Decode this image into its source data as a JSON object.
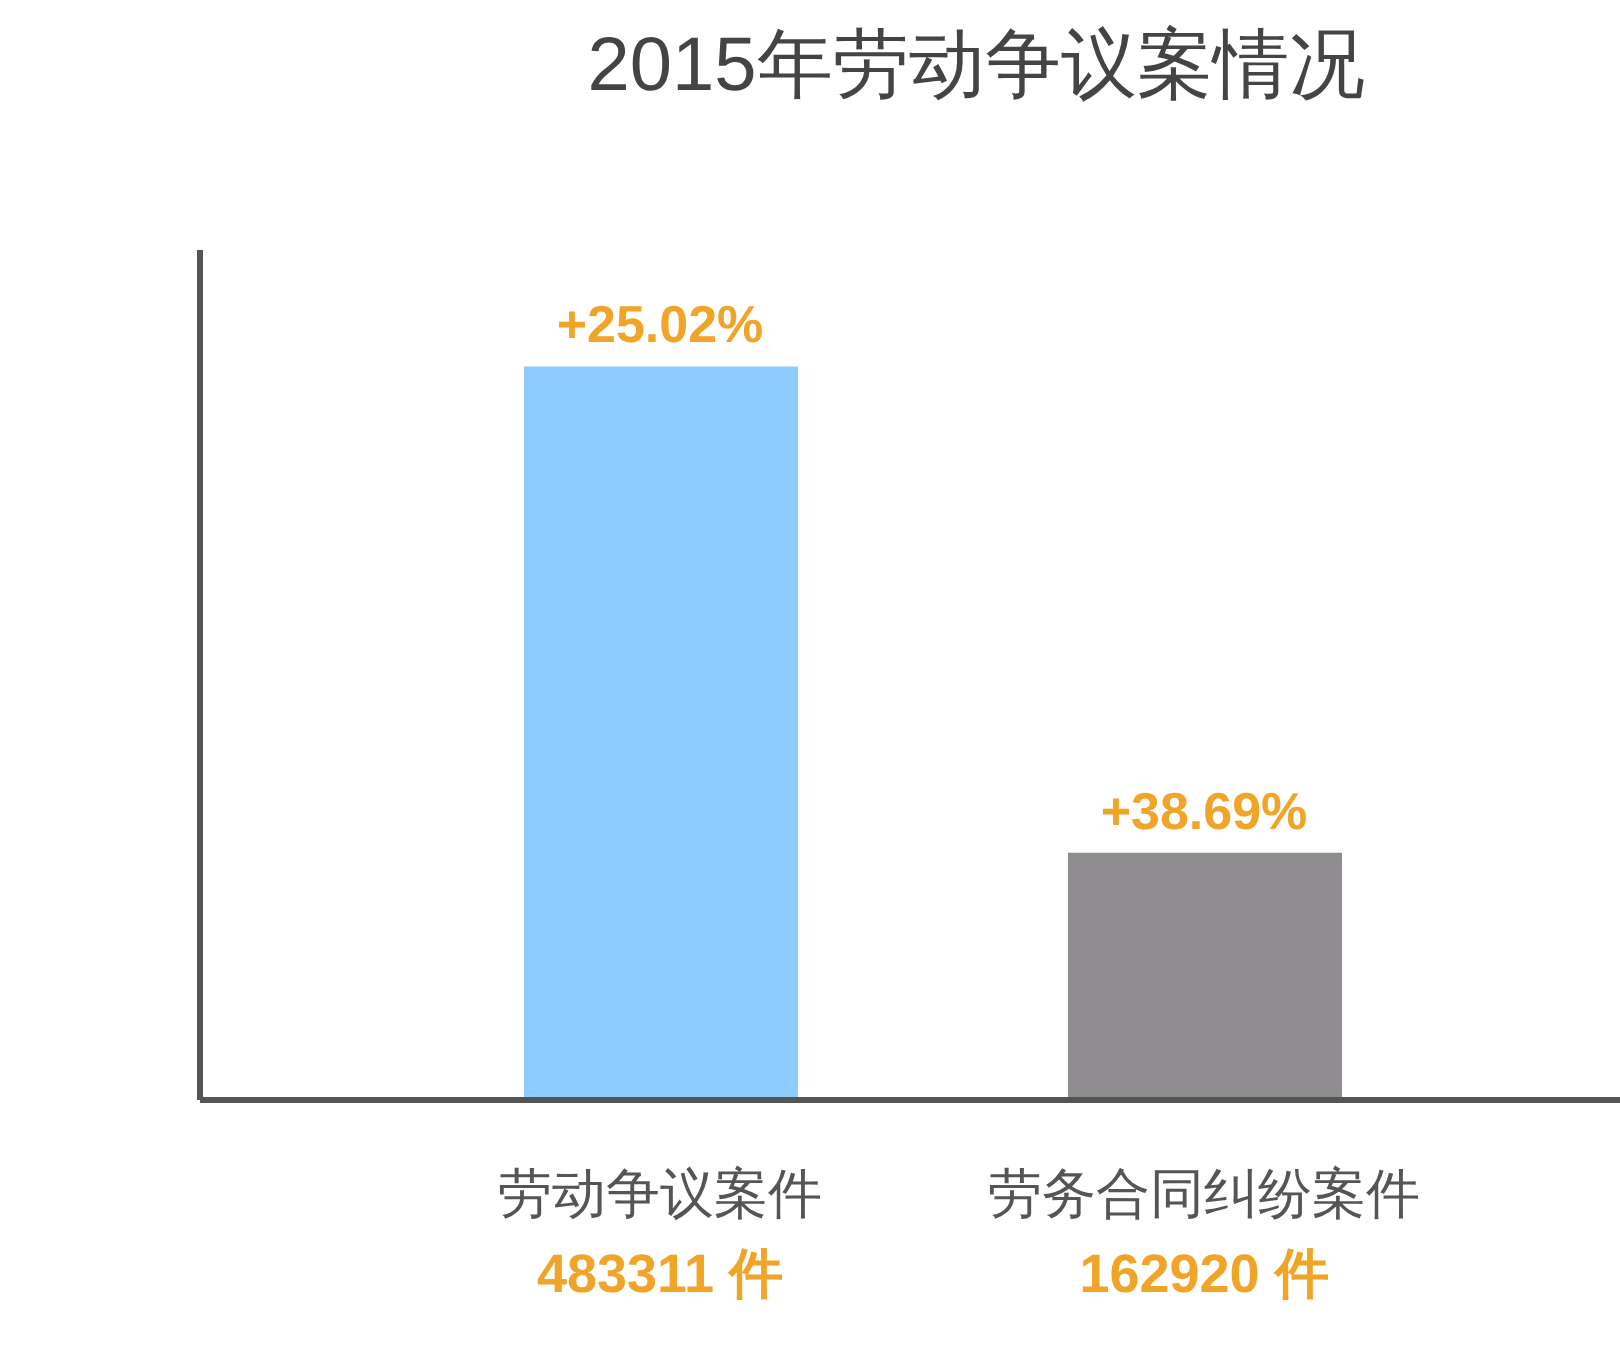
{
  "chart_data": {
    "type": "bar",
    "title": "2015年劳动争议案情况",
    "categories": [
      "劳动争议案件",
      "劳务合同纠纷案件"
    ],
    "values": [
      483311,
      162920
    ],
    "colors": [
      "#8ecbff",
      "#8e8c8e"
    ],
    "value_labels": [
      "483311 件",
      "162920 件"
    ],
    "annotations": [
      {
        "text": "+25.02%",
        "x": "劳动争议案件",
        "y": 483311
      },
      {
        "text": "+38.69%",
        "x": "劳务合同纠纷案件",
        "y": 162920
      }
    ],
    "ylim": [
      0,
      560000
    ],
    "tick_labels": "x",
    "grid": false
  }
}
